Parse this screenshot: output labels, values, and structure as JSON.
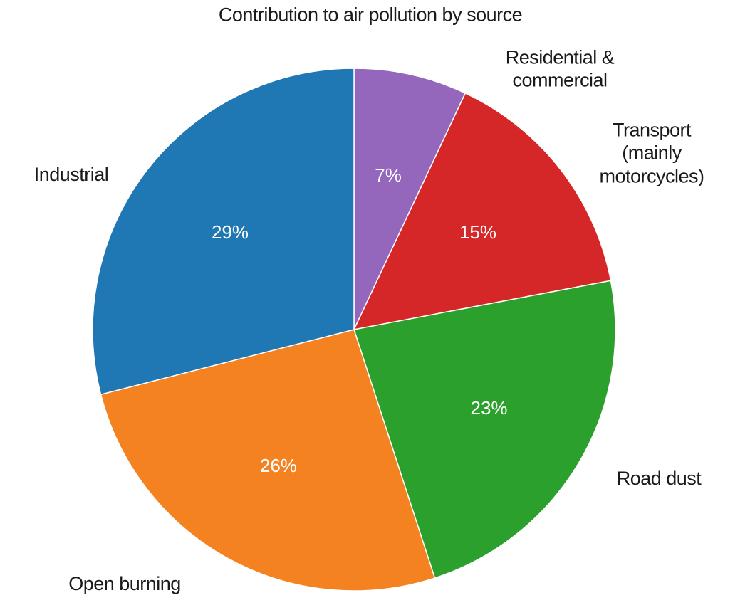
{
  "chart_data": {
    "type": "pie",
    "title": "Contribution to air pollution by source",
    "categories": [
      "Residential & commercial",
      "Transport\n(mainly motorcycles)",
      "Road dust",
      "Open burning",
      "Industrial"
    ],
    "values": [
      7,
      15,
      23,
      26,
      29
    ],
    "value_labels": [
      "7%",
      "15%",
      "23%",
      "26%",
      "29%"
    ],
    "colors": [
      "#9467bd",
      "#d62728",
      "#2ca02c",
      "#f58220",
      "#1f77b4"
    ]
  }
}
